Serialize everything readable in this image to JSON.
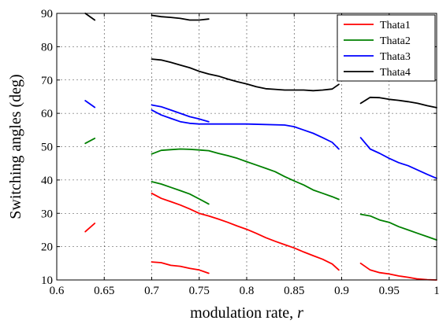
{
  "chart_data": {
    "type": "line",
    "xlabel_prefix": "modulation rate, ",
    "xlabel_var": "r",
    "ylabel": "Switching angles (deg)",
    "xlim": [
      0.6,
      1.0
    ],
    "ylim": [
      10,
      90
    ],
    "xticks": [
      0.6,
      0.65,
      0.7,
      0.75,
      0.8,
      0.85,
      0.9,
      0.95,
      1.0
    ],
    "xtick_labels": [
      "0.6",
      "0.65",
      "0.7",
      "0.75",
      "0.8",
      "0.85",
      "0.9",
      "0.95",
      "1"
    ],
    "yticks": [
      10,
      20,
      30,
      40,
      50,
      60,
      70,
      80,
      90
    ],
    "ytick_labels": [
      "10",
      "20",
      "30",
      "40",
      "50",
      "60",
      "70",
      "80",
      "90"
    ],
    "grid": true,
    "legend_position": "top-right",
    "series": [
      {
        "name": "Thata1",
        "color": "#ff0000",
        "segments": [
          [
            [
              0.63,
              24.5
            ],
            [
              0.64,
              27.0
            ]
          ],
          [
            [
              0.7,
              36.0
            ],
            [
              0.71,
              34.5
            ],
            [
              0.72,
              33.5
            ],
            [
              0.73,
              32.5
            ],
            [
              0.74,
              31.3
            ],
            [
              0.75,
              30.0
            ],
            [
              0.76,
              29.2
            ],
            [
              0.77,
              28.3
            ],
            [
              0.78,
              27.3
            ],
            [
              0.79,
              26.2
            ],
            [
              0.8,
              25.2
            ],
            [
              0.81,
              24.0
            ],
            [
              0.82,
              22.7
            ],
            [
              0.83,
              21.6
            ],
            [
              0.84,
              20.6
            ],
            [
              0.85,
              19.6
            ],
            [
              0.86,
              18.4
            ],
            [
              0.87,
              17.3
            ],
            [
              0.88,
              16.2
            ],
            [
              0.89,
              14.8
            ],
            [
              0.897,
              13.0
            ]
          ],
          [
            [
              0.7,
              15.4
            ],
            [
              0.71,
              15.2
            ],
            [
              0.72,
              14.4
            ],
            [
              0.73,
              14.1
            ],
            [
              0.74,
              13.5
            ],
            [
              0.75,
              13.0
            ],
            [
              0.76,
              12.0
            ]
          ],
          [
            [
              0.92,
              15.0
            ],
            [
              0.93,
              13.0
            ],
            [
              0.94,
              12.2
            ],
            [
              0.95,
              11.8
            ],
            [
              0.96,
              11.2
            ],
            [
              0.97,
              10.8
            ],
            [
              0.98,
              10.3
            ],
            [
              0.99,
              10.1
            ],
            [
              1.0,
              10.0
            ]
          ]
        ]
      },
      {
        "name": "Thata2",
        "color": "#008000",
        "segments": [
          [
            [
              0.63,
              51.0
            ],
            [
              0.64,
              52.5
            ]
          ],
          [
            [
              0.7,
              47.8
            ],
            [
              0.71,
              48.9
            ],
            [
              0.72,
              49.1
            ],
            [
              0.73,
              49.3
            ],
            [
              0.74,
              49.2
            ],
            [
              0.75,
              49.0
            ],
            [
              0.76,
              48.8
            ],
            [
              0.77,
              48.0
            ],
            [
              0.78,
              47.3
            ],
            [
              0.79,
              46.5
            ],
            [
              0.8,
              45.5
            ],
            [
              0.81,
              44.5
            ],
            [
              0.82,
              43.5
            ],
            [
              0.83,
              42.5
            ],
            [
              0.84,
              41.0
            ],
            [
              0.85,
              39.7
            ],
            [
              0.86,
              38.5
            ],
            [
              0.87,
              37.0
            ],
            [
              0.88,
              36.0
            ],
            [
              0.89,
              35.0
            ],
            [
              0.897,
              34.2
            ]
          ],
          [
            [
              0.7,
              39.5
            ],
            [
              0.71,
              38.8
            ],
            [
              0.72,
              37.8
            ],
            [
              0.73,
              36.8
            ],
            [
              0.74,
              35.8
            ],
            [
              0.75,
              34.3
            ],
            [
              0.76,
              32.8
            ]
          ],
          [
            [
              0.92,
              29.7
            ],
            [
              0.93,
              29.2
            ],
            [
              0.94,
              28.0
            ],
            [
              0.95,
              27.3
            ],
            [
              0.96,
              26.0
            ],
            [
              0.97,
              25.0
            ],
            [
              0.98,
              24.0
            ],
            [
              0.99,
              23.0
            ],
            [
              1.0,
              22.0
            ]
          ]
        ]
      },
      {
        "name": "Thata3",
        "color": "#0000ff",
        "segments": [
          [
            [
              0.63,
              63.8
            ],
            [
              0.64,
              61.8
            ]
          ],
          [
            [
              0.7,
              62.5
            ],
            [
              0.71,
              62.0
            ],
            [
              0.72,
              61.0
            ],
            [
              0.73,
              60.0
            ],
            [
              0.74,
              59.0
            ],
            [
              0.75,
              58.3
            ],
            [
              0.76,
              57.5
            ]
          ],
          [
            [
              0.7,
              61.0
            ],
            [
              0.71,
              59.5
            ],
            [
              0.72,
              58.5
            ],
            [
              0.73,
              57.5
            ],
            [
              0.74,
              57.0
            ],
            [
              0.75,
              56.8
            ],
            [
              0.76,
              56.8
            ],
            [
              0.8,
              56.8
            ],
            [
              0.84,
              56.5
            ],
            [
              0.85,
              56.0
            ],
            [
              0.86,
              55.0
            ],
            [
              0.87,
              54.0
            ],
            [
              0.88,
              52.7
            ],
            [
              0.89,
              51.3
            ],
            [
              0.897,
              49.3
            ]
          ],
          [
            [
              0.92,
              52.7
            ],
            [
              0.93,
              49.3
            ],
            [
              0.94,
              48.0
            ],
            [
              0.95,
              46.5
            ],
            [
              0.96,
              45.2
            ],
            [
              0.97,
              44.3
            ],
            [
              0.98,
              43.0
            ],
            [
              0.99,
              41.7
            ],
            [
              1.0,
              40.5
            ]
          ]
        ]
      },
      {
        "name": "Thata4",
        "color": "#000000",
        "segments": [
          [
            [
              0.63,
              90.0
            ],
            [
              0.64,
              88.0
            ]
          ],
          [
            [
              0.7,
              89.4
            ],
            [
              0.71,
              89.0
            ],
            [
              0.72,
              88.8
            ],
            [
              0.73,
              88.5
            ],
            [
              0.74,
              88.0
            ],
            [
              0.75,
              88.0
            ],
            [
              0.76,
              88.3
            ]
          ],
          [
            [
              0.7,
              76.3
            ],
            [
              0.71,
              76.0
            ],
            [
              0.72,
              75.3
            ],
            [
              0.73,
              74.5
            ],
            [
              0.74,
              73.7
            ],
            [
              0.75,
              72.6
            ],
            [
              0.76,
              71.8
            ],
            [
              0.77,
              71.2
            ],
            [
              0.78,
              70.3
            ],
            [
              0.79,
              69.5
            ],
            [
              0.8,
              68.8
            ],
            [
              0.81,
              68.0
            ],
            [
              0.82,
              67.4
            ],
            [
              0.83,
              67.2
            ],
            [
              0.84,
              67.0
            ],
            [
              0.85,
              67.0
            ],
            [
              0.86,
              67.0
            ],
            [
              0.87,
              66.8
            ],
            [
              0.88,
              67.0
            ],
            [
              0.89,
              67.3
            ],
            [
              0.897,
              68.7
            ]
          ],
          [
            [
              0.92,
              63.0
            ],
            [
              0.93,
              64.8
            ],
            [
              0.94,
              64.7
            ],
            [
              0.95,
              64.2
            ],
            [
              0.96,
              63.9
            ],
            [
              0.97,
              63.5
            ],
            [
              0.98,
              63.0
            ],
            [
              0.99,
              62.3
            ],
            [
              1.0,
              61.7
            ]
          ]
        ]
      }
    ]
  }
}
